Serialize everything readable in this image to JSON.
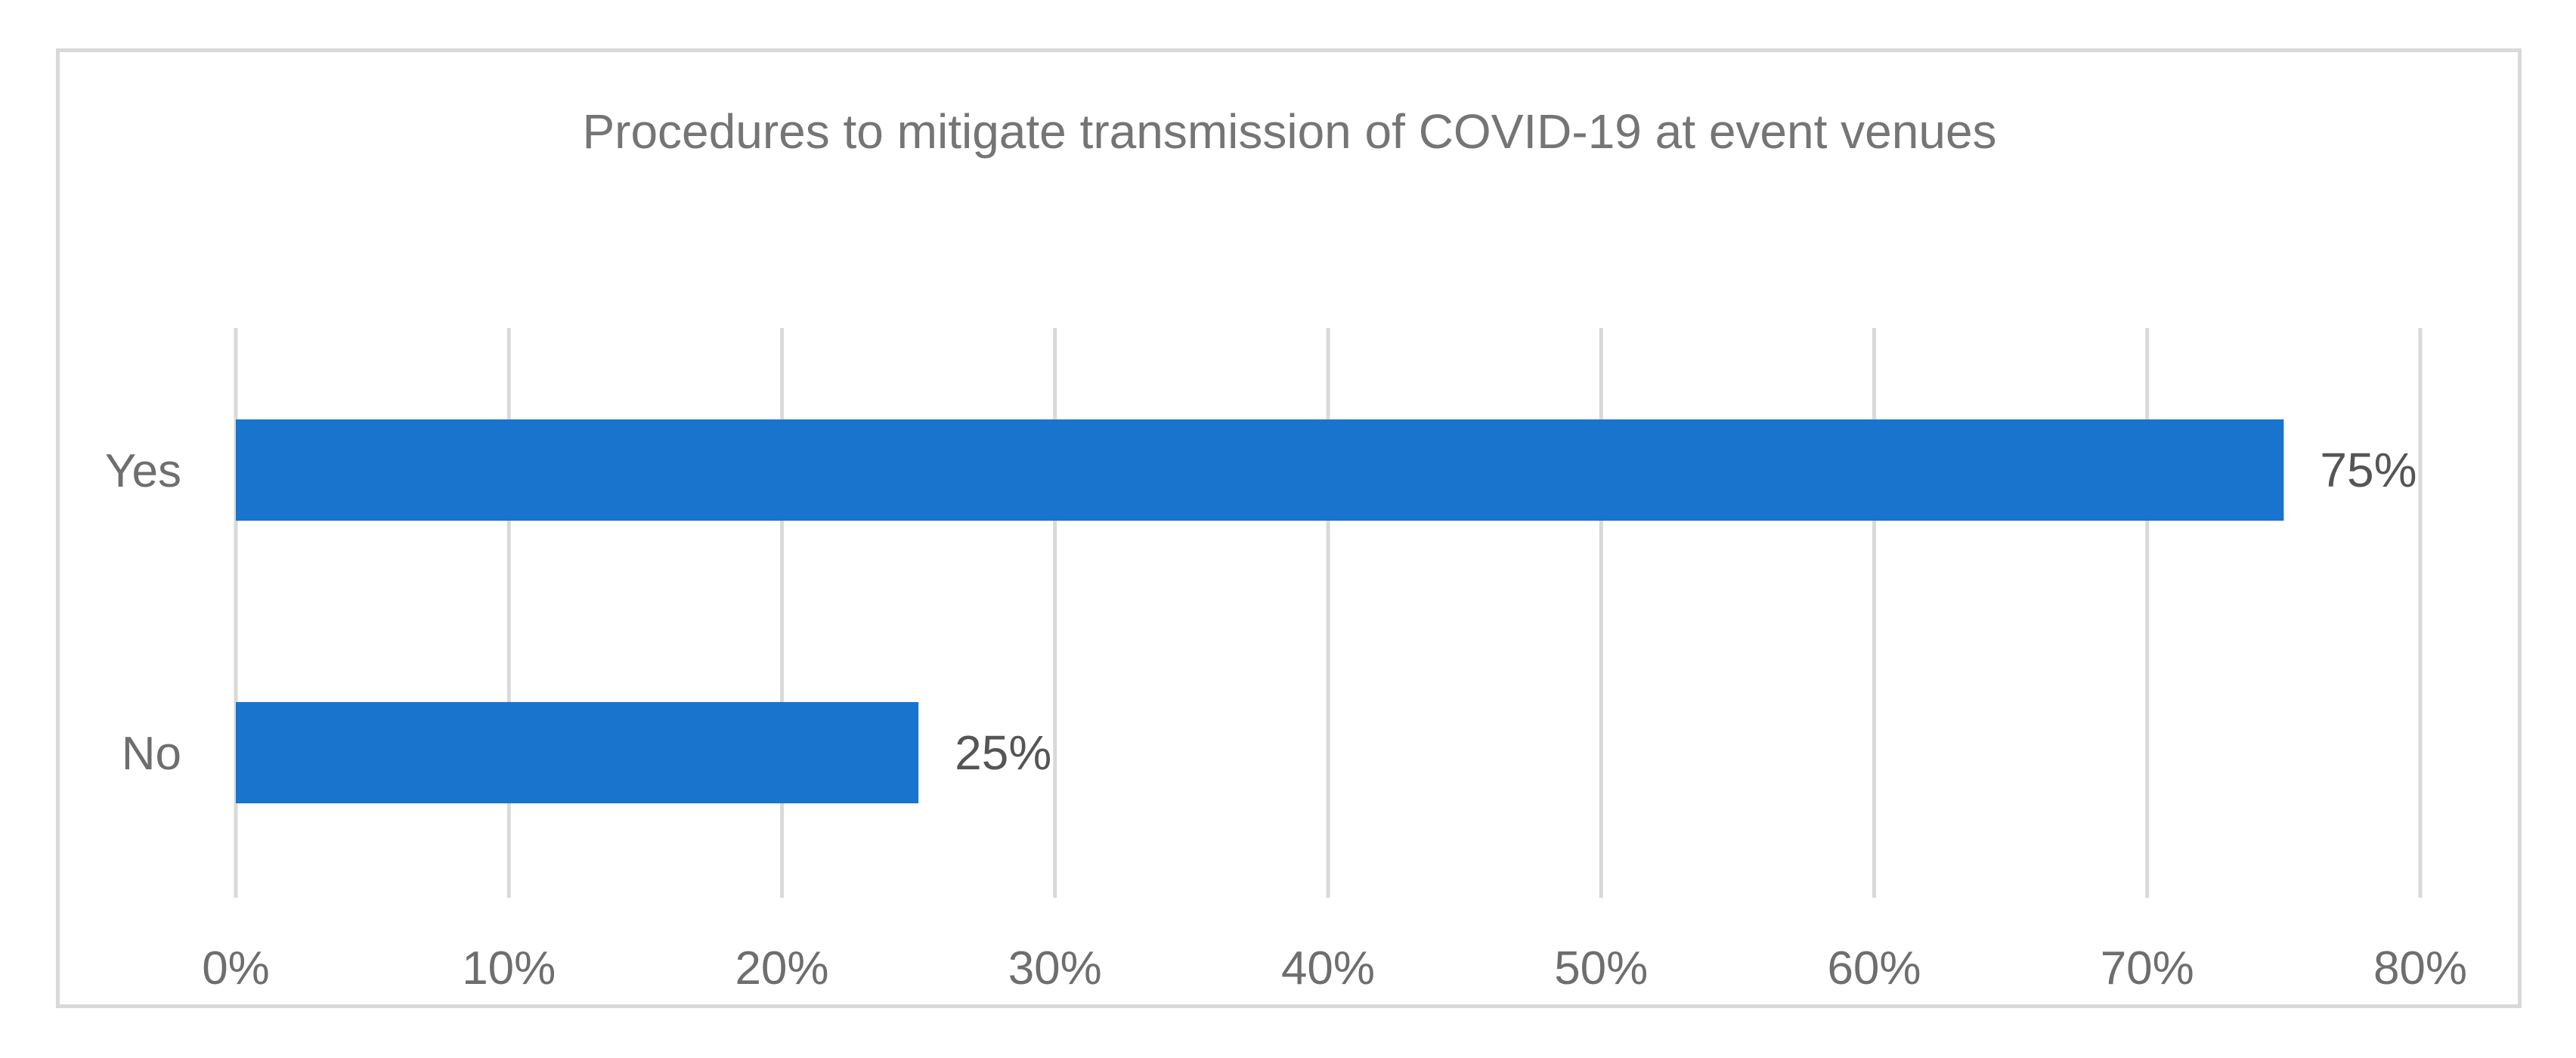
{
  "chart_data": {
    "type": "bar",
    "orientation": "horizontal",
    "title": "Procedures to mitigate transmission of COVID-19 at event venues",
    "categories": [
      "Yes",
      "No"
    ],
    "values": [
      75,
      25
    ],
    "data_labels": [
      "75%",
      "25%"
    ],
    "xlim": [
      0,
      80
    ],
    "x_ticks": [
      0,
      10,
      20,
      30,
      40,
      50,
      60,
      70,
      80
    ],
    "x_tick_labels": [
      "0%",
      "10%",
      "20%",
      "30%",
      "40%",
      "50%",
      "60%",
      "70%",
      "80%"
    ],
    "xlabel": "",
    "ylabel": "",
    "grid": true,
    "legend": "none",
    "bar_color": "#1874CD"
  }
}
